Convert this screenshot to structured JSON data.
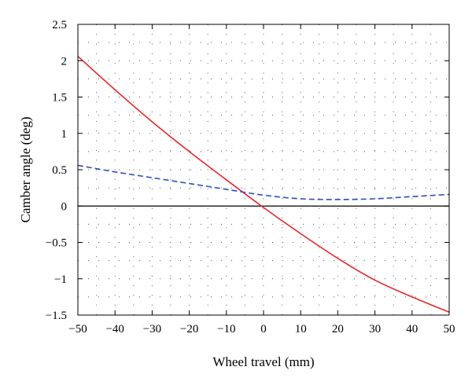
{
  "chart_data": {
    "type": "line",
    "xlabel": "Wheel travel (mm)",
    "ylabel": "Camber angle (deg)",
    "xlim": [
      -50,
      50
    ],
    "ylim": [
      -1.5,
      2.5
    ],
    "x_ticks": [
      -50,
      -40,
      -30,
      -20,
      -10,
      0,
      10,
      20,
      30,
      40,
      50
    ],
    "y_ticks": [
      -1.5,
      -1,
      -0.5,
      0,
      0.5,
      1,
      1.5,
      2,
      2.5
    ],
    "x_tick_labels": [
      "−50",
      "−40",
      "−30",
      "−20",
      "−10",
      "0",
      "10",
      "20",
      "30",
      "40",
      "50"
    ],
    "y_tick_labels": [
      "−1.5",
      "−1",
      "−0.5",
      "0",
      "0.5",
      "1",
      "1.5",
      "2",
      "2.5"
    ],
    "grid": "dotted",
    "reference_line_y": 0,
    "series": [
      {
        "style": "solid",
        "color": "#e8262a",
        "x": [
          -50,
          -40,
          -30,
          -20,
          -10,
          0,
          10,
          20,
          30,
          40,
          50
        ],
        "y": [
          2.06,
          1.6,
          1.16,
          0.75,
          0.36,
          -0.02,
          -0.38,
          -0.72,
          -1.02,
          -1.25,
          -1.46
        ]
      },
      {
        "style": "dashed",
        "color": "#2b4fb8",
        "x": [
          -50,
          -40,
          -30,
          -20,
          -10,
          0,
          10,
          20,
          30,
          40,
          50
        ],
        "y": [
          0.56,
          0.47,
          0.39,
          0.31,
          0.23,
          0.15,
          0.1,
          0.09,
          0.1,
          0.13,
          0.16
        ]
      }
    ]
  }
}
